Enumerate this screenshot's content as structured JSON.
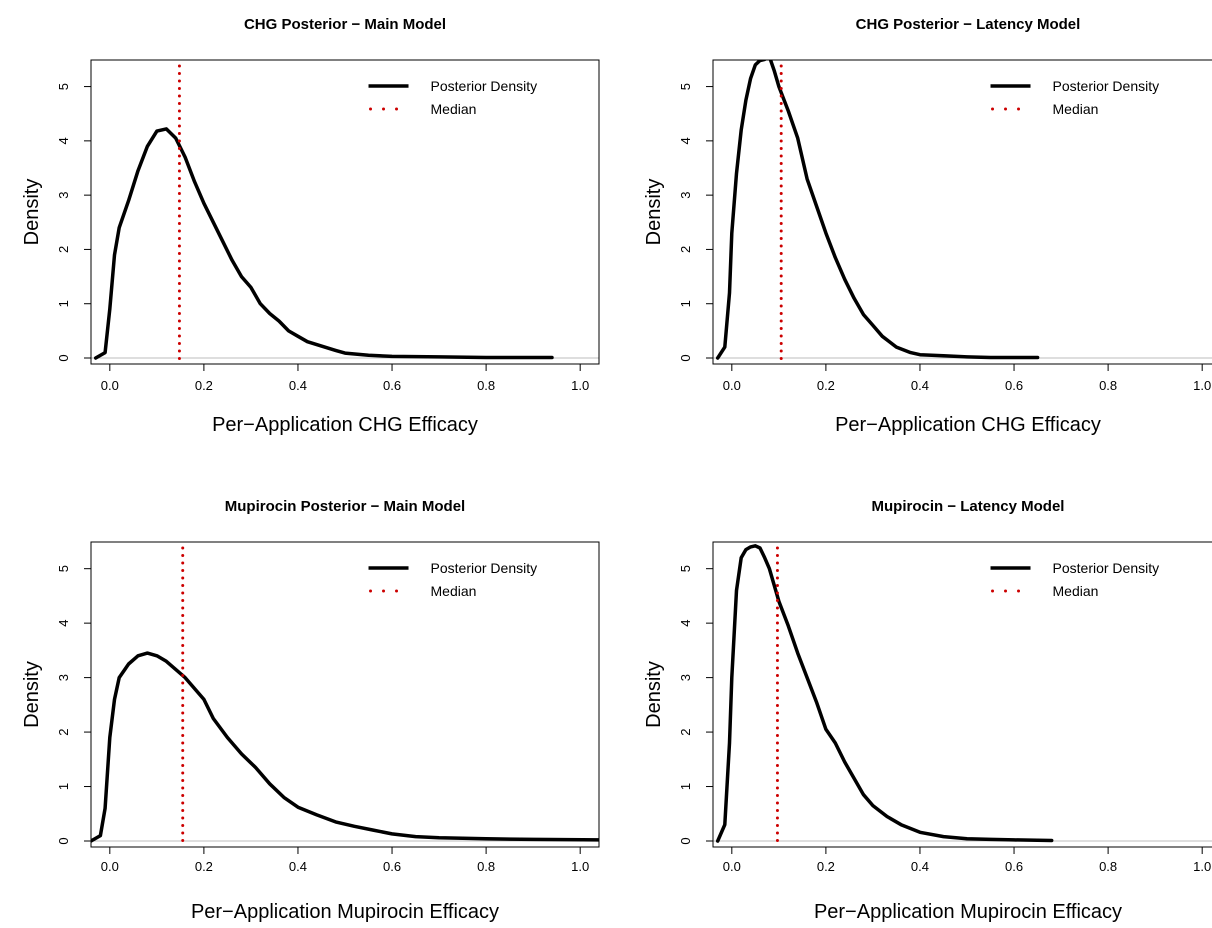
{
  "chart_data": [
    {
      "type": "line",
      "title": "CHG Posterior − Main Model",
      "xlabel": "Per−Application CHG Efficacy",
      "ylabel": "Density",
      "xlim": [
        -0.04,
        1.04
      ],
      "ylim": [
        0,
        5.6
      ],
      "xticks": [
        "0.0",
        "0.2",
        "0.4",
        "0.6",
        "0.8",
        "1.0"
      ],
      "yticks": [
        "0",
        "1",
        "2",
        "3",
        "4",
        "5"
      ],
      "legend": {
        "position": "top-right",
        "entries": [
          "Posterior Density",
          "Median"
        ]
      },
      "median": 0.148,
      "series": [
        {
          "name": "Posterior Density",
          "x": [
            -0.03,
            -0.01,
            0.0,
            0.01,
            0.02,
            0.04,
            0.06,
            0.08,
            0.1,
            0.12,
            0.14,
            0.16,
            0.18,
            0.2,
            0.22,
            0.24,
            0.26,
            0.28,
            0.3,
            0.32,
            0.34,
            0.36,
            0.38,
            0.4,
            0.42,
            0.45,
            0.48,
            0.5,
            0.55,
            0.6,
            0.7,
            0.8,
            0.94
          ],
          "y": [
            0.0,
            0.1,
            0.9,
            1.9,
            2.4,
            2.9,
            3.45,
            3.9,
            4.18,
            4.22,
            4.05,
            3.7,
            3.25,
            2.85,
            2.5,
            2.15,
            1.8,
            1.5,
            1.3,
            1.0,
            0.82,
            0.68,
            0.5,
            0.4,
            0.3,
            0.22,
            0.14,
            0.09,
            0.05,
            0.03,
            0.02,
            0.01,
            0.01
          ]
        }
      ]
    },
    {
      "type": "line",
      "title": "CHG Posterior − Latency Model",
      "xlabel": "Per−Application CHG Efficacy",
      "ylabel": "Density",
      "xlim": [
        -0.04,
        1.04
      ],
      "ylim": [
        0,
        5.6
      ],
      "xticks": [
        "0.0",
        "0.2",
        "0.4",
        "0.6",
        "0.8",
        "1.0"
      ],
      "yticks": [
        "0",
        "1",
        "2",
        "3",
        "4",
        "5"
      ],
      "legend": {
        "position": "top-right",
        "entries": [
          "Posterior Density",
          "Median"
        ]
      },
      "median": 0.105,
      "series": [
        {
          "name": "Posterior Density",
          "x": [
            -0.03,
            -0.015,
            -0.005,
            0.0,
            0.01,
            0.02,
            0.03,
            0.04,
            0.05,
            0.06,
            0.07,
            0.08,
            0.09,
            0.1,
            0.12,
            0.14,
            0.16,
            0.18,
            0.2,
            0.22,
            0.24,
            0.26,
            0.28,
            0.3,
            0.32,
            0.35,
            0.38,
            0.4,
            0.45,
            0.5,
            0.55,
            0.65
          ],
          "y": [
            0.0,
            0.2,
            1.2,
            2.3,
            3.4,
            4.2,
            4.75,
            5.15,
            5.4,
            5.48,
            5.5,
            5.55,
            5.3,
            5.0,
            4.55,
            4.05,
            3.3,
            2.8,
            2.3,
            1.85,
            1.45,
            1.1,
            0.8,
            0.6,
            0.4,
            0.2,
            0.1,
            0.06,
            0.04,
            0.02,
            0.01,
            0.01
          ]
        }
      ]
    },
    {
      "type": "line",
      "title": "Mupirocin Posterior − Main Model",
      "xlabel": "Per−Application Mupirocin Efficacy",
      "ylabel": "Density",
      "xlim": [
        -0.04,
        1.04
      ],
      "ylim": [
        0,
        5.6
      ],
      "xticks": [
        "0.0",
        "0.2",
        "0.4",
        "0.6",
        "0.8",
        "1.0"
      ],
      "yticks": [
        "0",
        "1",
        "2",
        "3",
        "4",
        "5"
      ],
      "legend": {
        "position": "top-right",
        "entries": [
          "Posterior Density",
          "Median"
        ]
      },
      "median": 0.155,
      "series": [
        {
          "name": "Posterior Density",
          "x": [
            -0.04,
            -0.02,
            -0.01,
            0.0,
            0.01,
            0.02,
            0.04,
            0.06,
            0.08,
            0.1,
            0.12,
            0.14,
            0.16,
            0.18,
            0.2,
            0.22,
            0.25,
            0.28,
            0.31,
            0.34,
            0.37,
            0.4,
            0.44,
            0.48,
            0.52,
            0.56,
            0.6,
            0.65,
            0.7,
            0.8,
            0.9,
            1.04
          ],
          "y": [
            0.0,
            0.1,
            0.6,
            1.9,
            2.6,
            3.0,
            3.25,
            3.4,
            3.45,
            3.4,
            3.3,
            3.15,
            3.0,
            2.8,
            2.6,
            2.25,
            1.9,
            1.6,
            1.35,
            1.05,
            0.8,
            0.62,
            0.48,
            0.35,
            0.27,
            0.2,
            0.13,
            0.08,
            0.06,
            0.04,
            0.03,
            0.02
          ]
        }
      ]
    },
    {
      "type": "line",
      "title": "Mupirocin − Latency Model",
      "xlabel": "Per−Application Mupirocin Efficacy",
      "ylabel": "Density",
      "xlim": [
        -0.04,
        1.04
      ],
      "ylim": [
        0,
        5.6
      ],
      "xticks": [
        "0.0",
        "0.2",
        "0.4",
        "0.6",
        "0.8",
        "1.0"
      ],
      "yticks": [
        "0",
        "1",
        "2",
        "3",
        "4",
        "5"
      ],
      "legend": {
        "position": "top-right",
        "entries": [
          "Posterior Density",
          "Median"
        ]
      },
      "median": 0.097,
      "series": [
        {
          "name": "Posterior Density",
          "x": [
            -0.03,
            -0.015,
            -0.005,
            0.0,
            0.01,
            0.02,
            0.03,
            0.04,
            0.05,
            0.06,
            0.07,
            0.08,
            0.1,
            0.12,
            0.14,
            0.16,
            0.18,
            0.2,
            0.22,
            0.24,
            0.26,
            0.28,
            0.3,
            0.33,
            0.36,
            0.4,
            0.45,
            0.5,
            0.55,
            0.6,
            0.68
          ],
          "y": [
            0.0,
            0.3,
            1.8,
            3.0,
            4.6,
            5.2,
            5.35,
            5.4,
            5.42,
            5.38,
            5.2,
            5.0,
            4.4,
            3.95,
            3.45,
            3.0,
            2.55,
            2.05,
            1.8,
            1.45,
            1.15,
            0.85,
            0.65,
            0.45,
            0.3,
            0.16,
            0.08,
            0.04,
            0.03,
            0.02,
            0.01
          ]
        }
      ]
    }
  ],
  "colors": {
    "density_line": "#000000",
    "median_line": "#cc0000",
    "baseline": "#bdbdbd"
  }
}
